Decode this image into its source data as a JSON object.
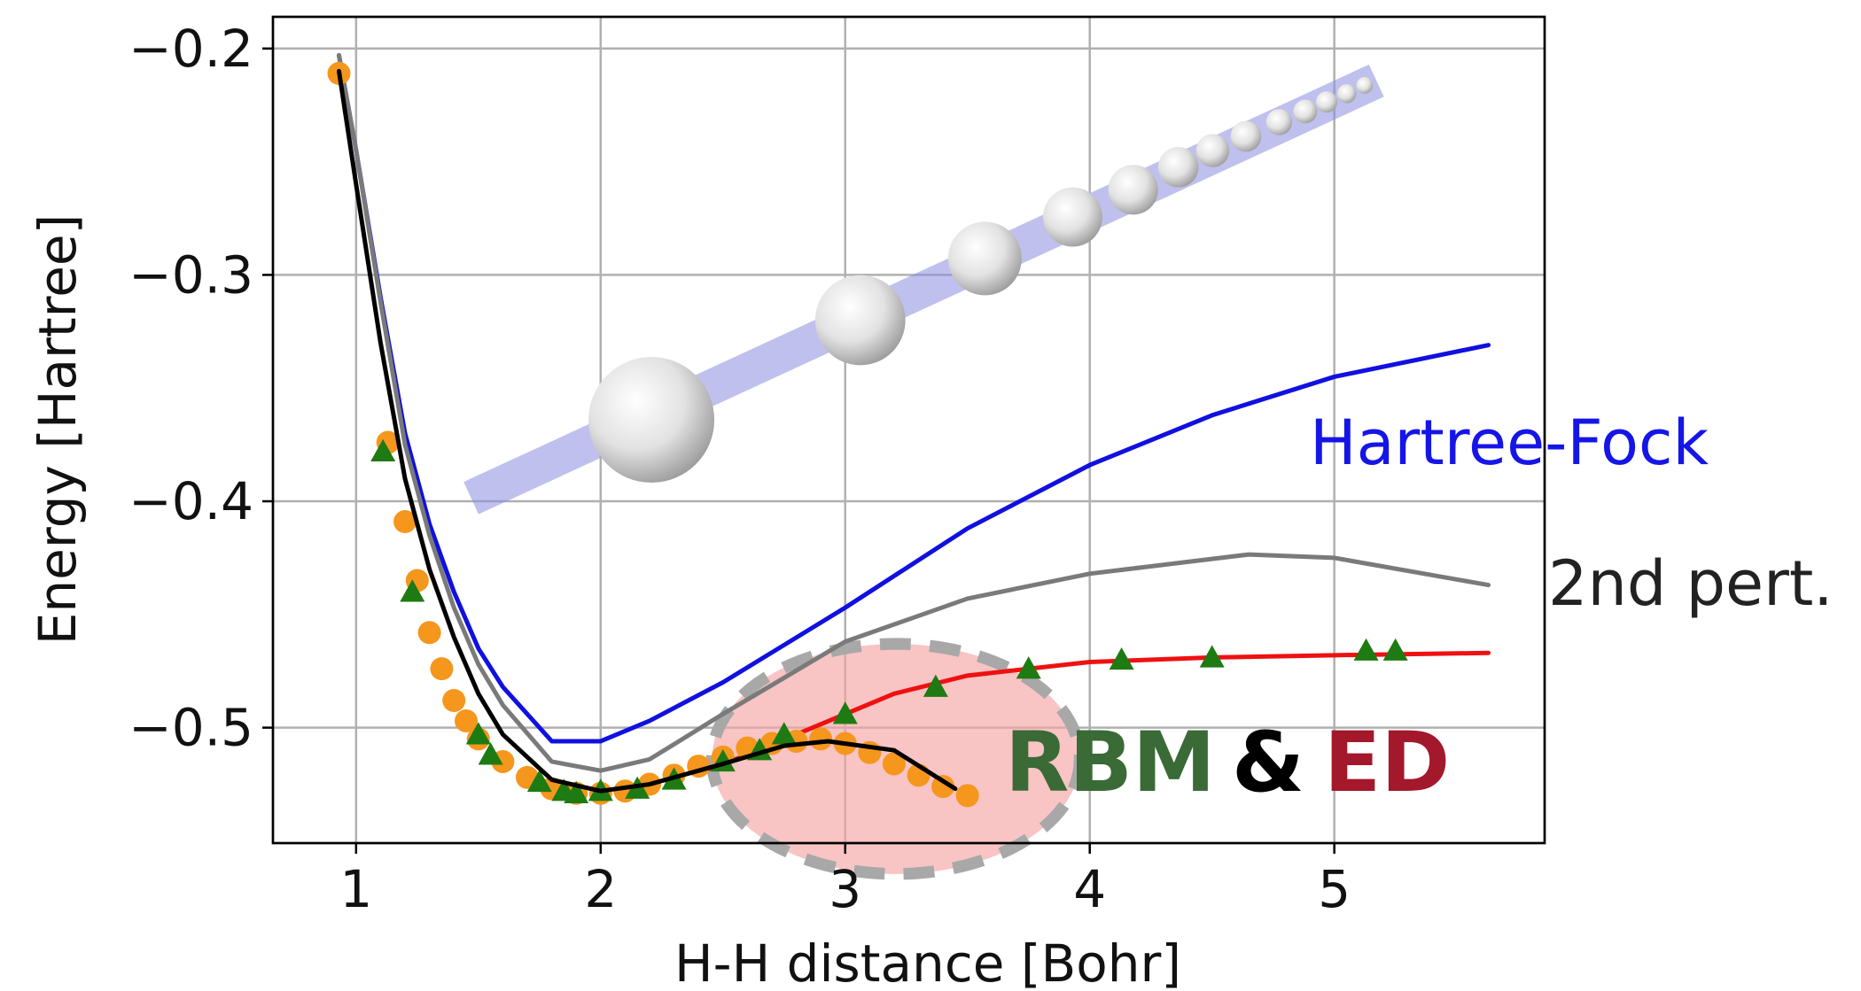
{
  "chart_data": {
    "type": "line",
    "xlabel": "H-H distance [Bohr]",
    "ylabel": "Energy [Hartree]",
    "xlim": [
      0.66,
      5.86
    ],
    "ylim": [
      -0.551,
      -0.186
    ],
    "xticks": [
      1,
      2,
      3,
      4,
      5
    ],
    "yticks": [
      {
        "value": -0.2,
        "label": "−0.2"
      },
      {
        "value": -0.3,
        "label": "−0.3"
      },
      {
        "value": -0.4,
        "label": "−0.4"
      },
      {
        "value": -0.5,
        "label": "−0.5"
      }
    ],
    "grid": true,
    "annotation": "&",
    "series": [
      {
        "name": "Hartree-Fock",
        "color": "#1010e0",
        "marker": "none",
        "x": [
          0.93,
          1.0,
          1.1,
          1.2,
          1.3,
          1.4,
          1.5,
          1.6,
          1.8,
          2.0,
          2.2,
          2.5,
          3.0,
          3.5,
          4.0,
          4.5,
          5.0,
          5.63
        ],
        "values": [
          -0.203,
          -0.245,
          -0.31,
          -0.37,
          -0.41,
          -0.44,
          -0.465,
          -0.482,
          -0.506,
          -0.506,
          -0.497,
          -0.48,
          -0.447,
          -0.412,
          -0.384,
          -0.362,
          -0.345,
          -0.331
        ]
      },
      {
        "name": "2nd pert.",
        "color": "#7a7a7a",
        "marker": "none",
        "x": [
          0.93,
          1.0,
          1.1,
          1.2,
          1.3,
          1.4,
          1.5,
          1.6,
          1.8,
          2.0,
          2.2,
          2.5,
          3.0,
          3.5,
          4.0,
          4.65,
          5.0,
          5.63
        ],
        "values": [
          -0.203,
          -0.245,
          -0.312,
          -0.375,
          -0.415,
          -0.447,
          -0.472,
          -0.49,
          -0.515,
          -0.519,
          -0.514,
          -0.494,
          -0.462,
          -0.443,
          -0.432,
          -0.4235,
          -0.425,
          -0.437
        ]
      },
      {
        "name": "ED",
        "color": "#ee1111",
        "marker": "none",
        "x": [
          2.4,
          2.6,
          2.8,
          3.0,
          3.2,
          3.5,
          4.0,
          4.5,
          5.0,
          5.63
        ],
        "values": [
          -0.52,
          -0.512,
          -0.503,
          -0.494,
          -0.485,
          -0.477,
          -0.471,
          -0.469,
          -0.468,
          -0.467
        ]
      },
      {
        "color": "#f5961d",
        "marker": "o",
        "x": [
          0.93,
          1.13,
          1.2,
          1.25,
          1.3,
          1.35,
          1.4,
          1.45,
          1.5,
          1.6,
          1.7,
          1.8,
          1.9,
          2.0,
          2.1,
          2.2,
          2.3,
          2.4,
          2.5,
          2.6,
          2.7,
          2.8,
          2.9,
          3.0,
          3.1,
          3.2,
          3.3,
          3.4,
          3.5
        ],
        "values": [
          -0.211,
          -0.374,
          -0.409,
          -0.435,
          -0.458,
          -0.474,
          -0.488,
          -0.497,
          -0.505,
          -0.515,
          -0.522,
          -0.527,
          -0.529,
          -0.529,
          -0.528,
          -0.525,
          -0.521,
          -0.517,
          -0.513,
          -0.509,
          -0.507,
          -0.506,
          -0.505,
          -0.507,
          -0.511,
          -0.516,
          -0.521,
          -0.526,
          -0.53
        ]
      },
      {
        "name": "RBM",
        "color": "#1e7a12",
        "marker": "^",
        "x": [
          1.11,
          1.23,
          1.5,
          1.55,
          1.75,
          1.85,
          1.9,
          2.0,
          2.15,
          2.3,
          2.5,
          2.65,
          2.75,
          3.0,
          3.37,
          3.75,
          4.13,
          4.5,
          5.13,
          5.25
        ],
        "values": [
          -0.378,
          -0.44,
          -0.503,
          -0.512,
          -0.524,
          -0.528,
          -0.529,
          -0.528,
          -0.527,
          -0.523,
          -0.515,
          -0.51,
          -0.503,
          -0.494,
          -0.482,
          -0.474,
          -0.47,
          -0.469,
          -0.466,
          -0.466
        ]
      },
      {
        "color": "#000000",
        "marker": "none",
        "x": [
          0.93,
          1.0,
          1.1,
          1.2,
          1.3,
          1.4,
          1.5,
          1.6,
          1.8,
          2.0,
          2.2,
          2.5,
          2.75,
          2.93,
          3.2,
          3.45
        ],
        "values": [
          -0.21,
          -0.26,
          -0.33,
          -0.39,
          -0.43,
          -0.46,
          -0.485,
          -0.503,
          -0.523,
          -0.528,
          -0.525,
          -0.516,
          -0.508,
          -0.506,
          -0.51,
          -0.527
        ]
      }
    ]
  }
}
